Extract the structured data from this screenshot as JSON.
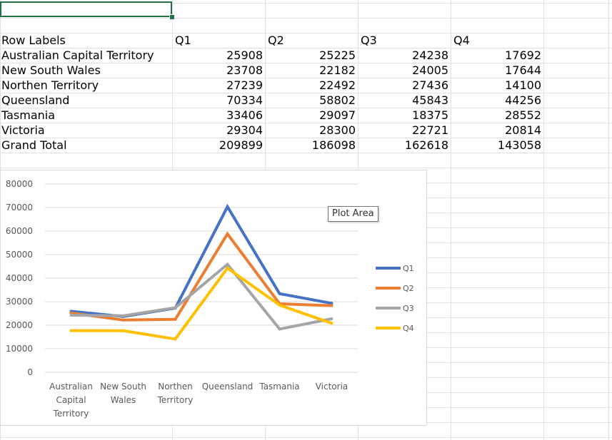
{
  "table": {
    "headers": [
      "Row Labels",
      "Q1",
      "Q2",
      "Q3",
      "Q4"
    ],
    "rows": [
      {
        "label": "Australian Capital Territory",
        "values": [
          "25908",
          "25225",
          "24238",
          "17692"
        ]
      },
      {
        "label": "New South Wales",
        "values": [
          "23708",
          "22182",
          "24005",
          "17644"
        ]
      },
      {
        "label": "Northen Territory",
        "values": [
          "27239",
          "22492",
          "27436",
          "14100"
        ]
      },
      {
        "label": "Queensland",
        "values": [
          "70334",
          "58802",
          "45843",
          "44256"
        ]
      },
      {
        "label": "Tasmania",
        "values": [
          "33406",
          "29097",
          "18375",
          "28552"
        ]
      },
      {
        "label": "Victoria",
        "values": [
          "29304",
          "28300",
          "22721",
          "20814"
        ]
      },
      {
        "label": "Grand Total",
        "values": [
          "209899",
          "186098",
          "162618",
          "143058"
        ]
      }
    ]
  },
  "tooltip": "Plot Area",
  "chart_data": {
    "type": "line",
    "categories": [
      [
        "Australian",
        "Capital",
        "Territory"
      ],
      [
        "New South",
        "Wales"
      ],
      [
        "Northen",
        "Territory"
      ],
      [
        "Queensland"
      ],
      [
        "Tasmania"
      ],
      [
        "Victoria"
      ]
    ],
    "y_ticks": [
      "80000",
      "70000",
      "60000",
      "50000",
      "40000",
      "30000",
      "20000",
      "10000",
      "0"
    ],
    "ylim": [
      0,
      80000
    ],
    "grid": true,
    "legend_position": "right",
    "series": [
      {
        "name": "Q1",
        "color": "#4472c4",
        "values": [
          25908,
          23708,
          27239,
          70334,
          33406,
          29304
        ]
      },
      {
        "name": "Q2",
        "color": "#ed7d31",
        "values": [
          25225,
          22182,
          22492,
          58802,
          29097,
          28300
        ]
      },
      {
        "name": "Q3",
        "color": "#a5a5a5",
        "values": [
          24238,
          24005,
          27436,
          45843,
          18375,
          22721
        ]
      },
      {
        "name": "Q4",
        "color": "#ffc000",
        "values": [
          17692,
          17644,
          14100,
          44256,
          28552,
          20814
        ]
      }
    ]
  }
}
